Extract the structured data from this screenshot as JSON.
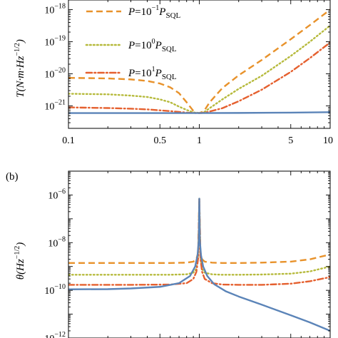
{
  "colors": {
    "blue": "#5b84b8",
    "orange_dashed": "#e8922b",
    "green_dotted": "#b6ba3c",
    "red_dashdot": "#e5602f",
    "axis": "#000000"
  },
  "chart_data": [
    {
      "panel_label": "",
      "type": "line",
      "ylabel": "T(N·m·Hz^−1/2)",
      "ylabel_parts": {
        "main": "T(N·m·Hz",
        "sup": "−1/2",
        "tail": ")"
      },
      "xscale": "log",
      "yscale": "log",
      "xlim": [
        0.1,
        10
      ],
      "ylim": [
        2e-22,
        2e-18
      ],
      "x_ticks": [
        {
          "value": 0.1,
          "label": "0.1"
        },
        {
          "value": 0.5,
          "label": "0.5"
        },
        {
          "value": 1,
          "label": "1"
        },
        {
          "value": 5,
          "label": "5"
        },
        {
          "value": 10,
          "label": "10"
        }
      ],
      "y_ticks": [
        {
          "value": 1e-21,
          "base": "10",
          "exp": "−21"
        },
        {
          "value": 1e-20,
          "base": "10",
          "exp": "−20"
        },
        {
          "value": 1e-19,
          "base": "10",
          "exp": "−19"
        },
        {
          "value": 1e-18,
          "base": "10",
          "exp": "−18"
        }
      ],
      "legend_placement": "top-left",
      "legend": [
        {
          "prefix": "P",
          "eq": "=10",
          "exp": "−1",
          "P2": "P",
          "sub": "SQL",
          "style": "dashed",
          "color_key": "orange_dashed"
        },
        {
          "prefix": "P",
          "eq": "=10",
          "exp": "0",
          "P2": "P",
          "sub": "SQL",
          "style": "dotted",
          "color_key": "green_dotted"
        },
        {
          "prefix": "P",
          "eq": "=10",
          "exp": "1",
          "P2": "P",
          "sub": "SQL",
          "style": "dashdot",
          "color_key": "red_dashdot"
        }
      ],
      "series": [
        {
          "style": "dashed",
          "color_key": "orange_dashed",
          "x": [
            0.1,
            0.2,
            0.3,
            0.4,
            0.5,
            0.6,
            0.7,
            0.8,
            0.9,
            0.95,
            1.0,
            1.05,
            1.1,
            1.2,
            1.5,
            2,
            3,
            5,
            7,
            10
          ],
          "y": [
            7.5e-21,
            7.2e-21,
            6.7e-21,
            6e-21,
            5e-21,
            3.8e-21,
            2.5e-21,
            1.3e-21,
            7e-22,
            6.2e-22,
            6e-22,
            6.5e-22,
            7.5e-22,
            1.3e-21,
            3.6e-21,
            9e-21,
            2.7e-20,
            1.2e-19,
            3.3e-19,
            1e-18
          ]
        },
        {
          "style": "dotted",
          "color_key": "green_dotted",
          "x": [
            0.1,
            0.2,
            0.3,
            0.4,
            0.5,
            0.6,
            0.7,
            0.8,
            0.9,
            0.95,
            1.0,
            1.05,
            1.1,
            1.2,
            1.5,
            2,
            3,
            5,
            7,
            10
          ],
          "y": [
            2.4e-21,
            2.3e-21,
            2.1e-21,
            1.9e-21,
            1.6e-21,
            1.3e-21,
            9.5e-22,
            7.5e-22,
            6.3e-22,
            6.1e-22,
            6e-22,
            6.2e-22,
            6.6e-22,
            8.5e-22,
            1.6e-21,
            3.4e-21,
            8.7e-21,
            3.6e-20,
            1e-19,
            3.2e-19
          ]
        },
        {
          "style": "dashdot",
          "color_key": "red_dashdot",
          "x": [
            0.1,
            0.2,
            0.3,
            0.4,
            0.5,
            0.6,
            0.7,
            0.8,
            0.9,
            0.95,
            1.0,
            1.05,
            1.1,
            1.2,
            1.5,
            2,
            3,
            5,
            7,
            10
          ],
          "y": [
            9e-22,
            8.6e-22,
            8.2e-22,
            7.8e-22,
            7.3e-22,
            6.9e-22,
            6.5e-22,
            6.2e-22,
            6.05e-22,
            6e-22,
            6e-22,
            6.05e-22,
            6.2e-22,
            6.7e-22,
            8.5e-22,
            1.4e-21,
            3.2e-21,
            1.15e-20,
            3.1e-20,
            9.5e-20
          ]
        },
        {
          "style": "solid",
          "color_key": "blue",
          "x": [
            0.1,
            0.5,
            1,
            2,
            5,
            10
          ],
          "y": [
            6e-22,
            6e-22,
            6e-22,
            6.05e-22,
            6.2e-22,
            6.4e-22
          ]
        }
      ]
    },
    {
      "panel_label": "(b)",
      "type": "line",
      "ylabel": "θ(Hz^−1/2)",
      "ylabel_parts": {
        "main": "θ(Hz",
        "sup": "−1/2",
        "tail": ")"
      },
      "xscale": "log",
      "yscale": "log",
      "xlim": [
        0.1,
        10
      ],
      "ylim": [
        1e-12,
        1e-05
      ],
      "y_ticks": [
        {
          "value": 1e-12,
          "base": "10",
          "exp": "−12"
        },
        {
          "value": 1e-10,
          "base": "10",
          "exp": "−10"
        },
        {
          "value": 1e-08,
          "base": "10",
          "exp": "−8"
        },
        {
          "value": 1e-06,
          "base": "10",
          "exp": "−6"
        }
      ],
      "series": [
        {
          "style": "dashed",
          "color_key": "orange_dashed",
          "x": [
            0.1,
            0.3,
            0.6,
            0.8,
            0.9,
            0.95,
            0.98,
            1.0,
            1.02,
            1.05,
            1.1,
            1.25,
            1.5,
            2,
            3,
            5,
            7,
            10
          ],
          "y": [
            1.4e-09,
            1.4e-09,
            1.4e-09,
            1.45e-09,
            1.6e-09,
            2e-09,
            4e-09,
            7e-07,
            4e-09,
            2e-09,
            1.6e-09,
            1.45e-09,
            1.4e-09,
            1.4e-09,
            1.45e-09,
            1.6e-09,
            2e-09,
            3.2e-09
          ]
        },
        {
          "style": "dotted",
          "color_key": "green_dotted",
          "x": [
            0.1,
            0.3,
            0.6,
            0.8,
            0.9,
            0.95,
            0.98,
            1.0,
            1.02,
            1.05,
            1.1,
            1.25,
            1.5,
            2,
            3,
            5,
            7,
            10
          ],
          "y": [
            4.5e-10,
            4.5e-10,
            4.5e-10,
            4.7e-10,
            5.5e-10,
            8e-10,
            2.5e-09,
            7e-07,
            2.5e-09,
            8e-10,
            5.5e-10,
            4.7e-10,
            4.5e-10,
            4.5e-10,
            4.6e-10,
            5e-10,
            6.2e-10,
            1e-09
          ]
        },
        {
          "style": "dashdot",
          "color_key": "red_dashdot",
          "x": [
            0.1,
            0.3,
            0.6,
            0.8,
            0.9,
            0.95,
            0.98,
            1.0,
            1.02,
            1.05,
            1.1,
            1.25,
            1.5,
            2,
            3,
            5,
            7,
            10
          ],
          "y": [
            1.7e-10,
            1.7e-10,
            1.75e-10,
            2e-10,
            3e-10,
            6e-10,
            2.2e-09,
            7e-07,
            2.2e-09,
            6e-10,
            3e-10,
            2e-10,
            1.75e-10,
            1.7e-10,
            1.7e-10,
            1.9e-10,
            2.4e-10,
            3.6e-10
          ]
        },
        {
          "style": "solid",
          "color_key": "blue",
          "x": [
            0.1,
            0.2,
            0.3,
            0.5,
            0.7,
            0.85,
            0.93,
            0.97,
            0.99,
            1.0,
            1.01,
            1.03,
            1.07,
            1.15,
            1.3,
            1.6,
            2,
            3,
            5,
            7,
            10
          ],
          "y": [
            1.1e-10,
            1.12e-10,
            1.2e-10,
            1.4e-10,
            2e-10,
            4e-10,
            1e-09,
            3e-09,
            1.2e-08,
            7e-07,
            1.2e-08,
            3e-09,
            1e-09,
            4e-10,
            1.8e-10,
            9e-11,
            5.5e-11,
            2.5e-11,
            9e-12,
            4.5e-12,
            2e-12
          ]
        }
      ]
    }
  ]
}
